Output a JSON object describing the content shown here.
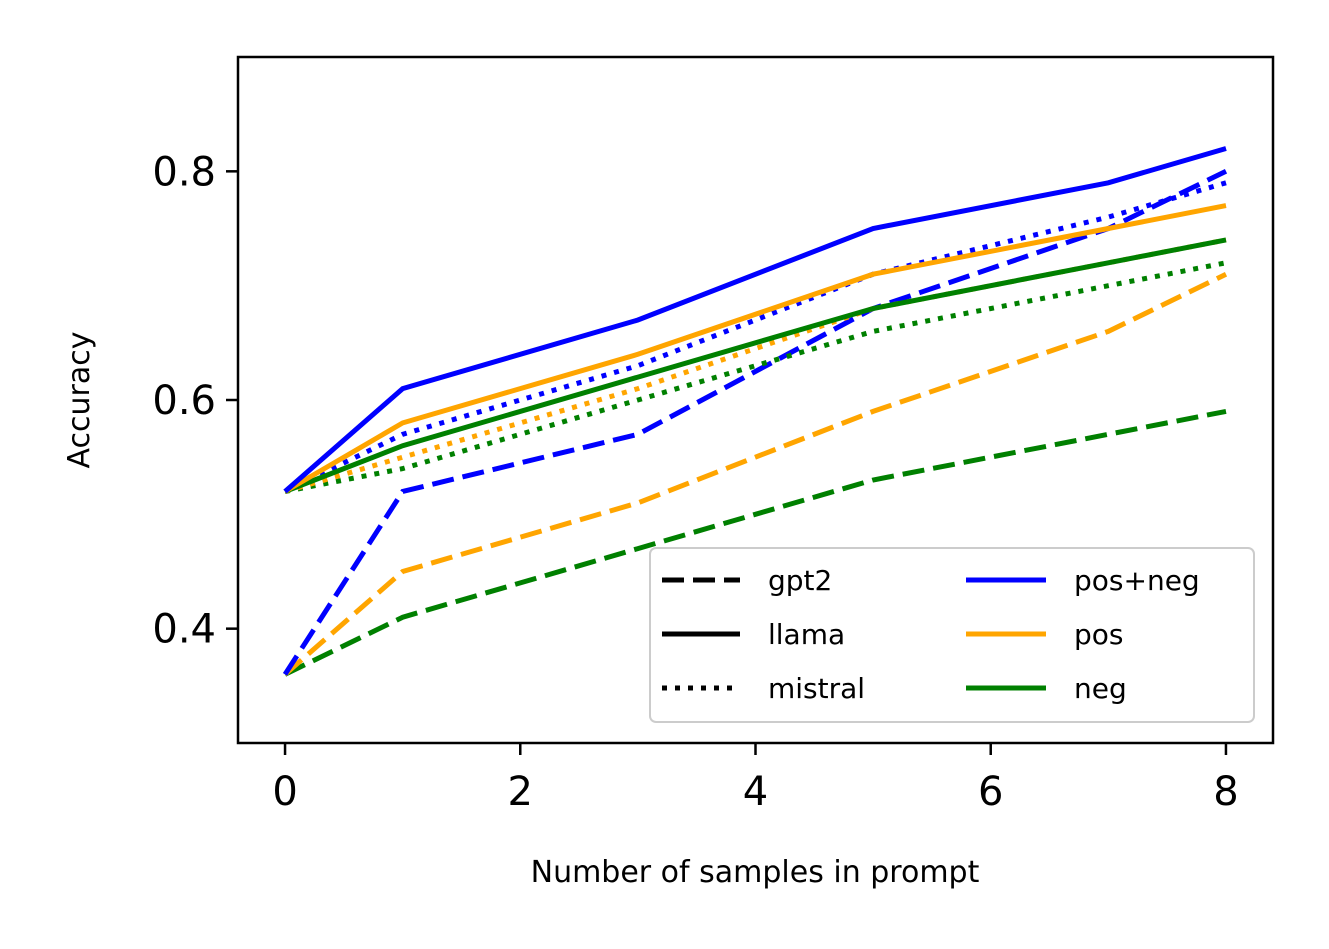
{
  "chart_data": {
    "type": "line",
    "xlabel": "Number of samples in prompt",
    "ylabel": "Accuracy",
    "xlim": [
      -0.4,
      8.4
    ],
    "ylim": [
      0.3,
      0.9
    ],
    "xticks": [
      0,
      2,
      4,
      6,
      8
    ],
    "xtick_labels": [
      "0",
      "2",
      "4",
      "6",
      "8"
    ],
    "yticks": [
      0.4,
      0.6,
      0.8
    ],
    "ytick_labels": [
      "0.4",
      "0.6",
      "0.8"
    ],
    "x": [
      0,
      1,
      3,
      5,
      7,
      8
    ],
    "grid": false,
    "legend_position": "lower-right",
    "legend": {
      "styles": [
        {
          "label": "gpt2",
          "dash": "dashed"
        },
        {
          "label": "llama",
          "dash": "solid"
        },
        {
          "label": "mistral",
          "dash": "dotted"
        }
      ],
      "colors": [
        {
          "label": "pos+neg",
          "color": "#0000ff"
        },
        {
          "label": "pos",
          "color": "#ffa500"
        },
        {
          "label": "neg",
          "color": "#008000"
        }
      ]
    },
    "series": [
      {
        "model": "gpt2",
        "prompt": "neg",
        "color": "#008000",
        "dash": "dashed",
        "values": [
          0.36,
          0.41,
          0.47,
          0.53,
          0.57,
          0.59
        ]
      },
      {
        "model": "gpt2",
        "prompt": "pos",
        "color": "#ffa500",
        "dash": "dashed",
        "values": [
          0.36,
          0.45,
          0.51,
          0.59,
          0.66,
          0.71
        ]
      },
      {
        "model": "gpt2",
        "prompt": "pos+neg",
        "color": "#0000ff",
        "dash": "dashed",
        "values": [
          0.36,
          0.52,
          0.57,
          0.68,
          0.75,
          0.8
        ]
      },
      {
        "model": "mistral",
        "prompt": "neg",
        "color": "#008000",
        "dash": "dotted",
        "values": [
          0.52,
          0.54,
          0.6,
          0.66,
          0.7,
          0.72
        ]
      },
      {
        "model": "mistral",
        "prompt": "pos",
        "color": "#ffa500",
        "dash": "dotted",
        "values": [
          0.52,
          0.55,
          0.61,
          0.68,
          0.72,
          0.74
        ]
      },
      {
        "model": "mistral",
        "prompt": "pos+neg",
        "color": "#0000ff",
        "dash": "dotted",
        "values": [
          0.52,
          0.57,
          0.63,
          0.71,
          0.76,
          0.79
        ]
      },
      {
        "model": "llama",
        "prompt": "neg",
        "color": "#008000",
        "dash": "solid",
        "values": [
          0.52,
          0.56,
          0.62,
          0.68,
          0.72,
          0.74
        ]
      },
      {
        "model": "llama",
        "prompt": "pos",
        "color": "#ffa500",
        "dash": "solid",
        "values": [
          0.52,
          0.58,
          0.64,
          0.71,
          0.75,
          0.77
        ]
      },
      {
        "model": "llama",
        "prompt": "pos+neg",
        "color": "#0000ff",
        "dash": "solid",
        "values": [
          0.52,
          0.61,
          0.67,
          0.75,
          0.79,
          0.82
        ]
      }
    ]
  }
}
